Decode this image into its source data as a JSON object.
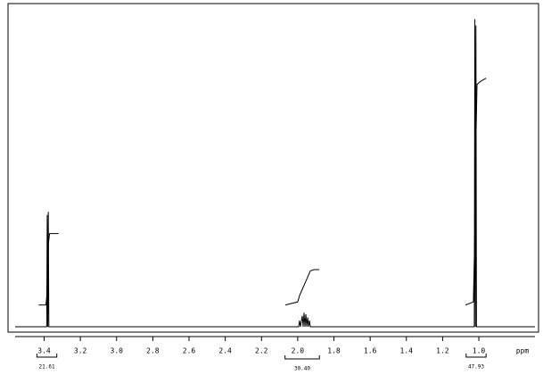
{
  "chart_data": {
    "type": "line",
    "x_label": "ppm",
    "xlim": [
      3.56,
      0.69
    ],
    "ylim": [
      0,
      100
    ],
    "reverse_x": true,
    "xticks": [
      3.4,
      3.2,
      {
        "value": 3,
        "label": "3.0"
      },
      2.8,
      2.6,
      2.4,
      2.2,
      {
        "value": 2,
        "label": "2.0"
      },
      1.8,
      1.6,
      1.4,
      1.2,
      {
        "value": 1,
        "label": "1.0"
      }
    ],
    "color": "#000000",
    "series": [
      {
        "x": [
          3.56,
          3.386,
          3.383,
          3.38,
          3.377,
          3.374,
          3.371,
          1.995,
          1.99,
          1.985,
          1.975,
          1.97,
          1.965,
          1.96,
          1.955,
          1.95,
          1.945,
          1.94,
          1.935,
          1.93,
          1.925,
          1.025,
          1.022,
          1.019,
          1.016,
          1.013,
          1.01,
          0.69
        ],
        "values": [
          0,
          0,
          36,
          0,
          37,
          0,
          0,
          0,
          2,
          0,
          3.5,
          0,
          4.5,
          0,
          4,
          0,
          3,
          0,
          2,
          0,
          0,
          0,
          99,
          0,
          97,
          0,
          0,
          0
        ]
      },
      {
        "x": [
          3.43,
          3.39,
          3.385,
          3.38,
          3.376,
          3.37,
          3.32
        ],
        "values": [
          7,
          7,
          10,
          18,
          27,
          30,
          30
        ]
      },
      {
        "x": [
          2.068,
          2.0,
          1.99,
          1.975,
          1.96,
          1.945,
          1.93,
          1.91,
          1.881
        ],
        "values": [
          7,
          8,
          10,
          12,
          14,
          16,
          18,
          18.4,
          18.4
        ]
      },
      {
        "x": [
          1.074,
          1.03,
          1.022,
          1.016,
          1.01,
          0.99,
          0.96
        ],
        "values": [
          7,
          8,
          30,
          60,
          78,
          79,
          80
        ]
      }
    ],
    "integrals": {
      "values": [
        21.61,
        30.4,
        47.93
      ],
      "value_labels": [
        "21.61",
        "30.40",
        "47.93"
      ],
      "ranges": [
        [
          3.44,
          3.33
        ],
        [
          2.07,
          1.88
        ],
        [
          1.07,
          0.96
        ]
      ]
    }
  }
}
